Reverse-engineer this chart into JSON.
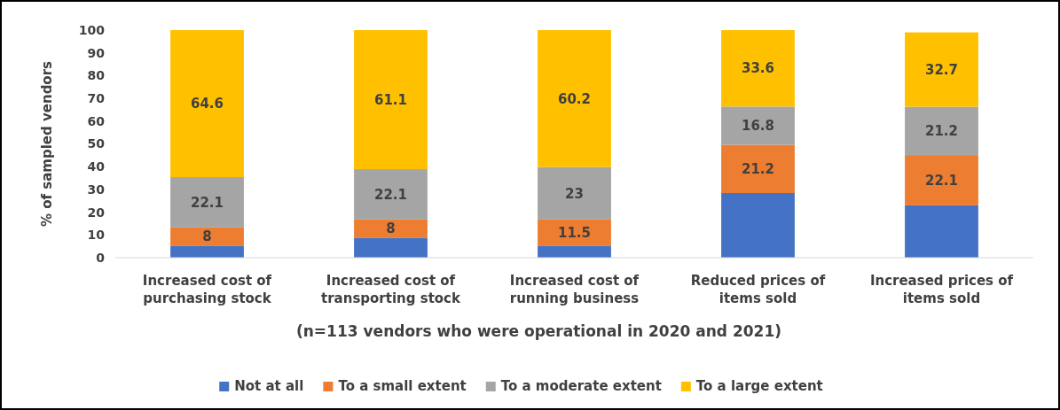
{
  "chart_data": {
    "type": "bar",
    "stacked": true,
    "xlabel": "(n=113 vendors who were operational in 2020 and 2021)",
    "ylabel": "% of sampled vendors",
    "categories": [
      "Increased cost of purchasing stock",
      "Increased cost of transporting stock",
      "Increased cost of running business",
      "Reduced prices of items sold",
      "Increased prices of items sold"
    ],
    "series": [
      {
        "name": "Not at all",
        "color": "#4472c4",
        "values": [
          5.3,
          8.8,
          5.3,
          28.4,
          23.0
        ],
        "value_labels": [
          null,
          null,
          null,
          null,
          null
        ]
      },
      {
        "name": "To a small extent",
        "color": "#ed7d31",
        "values": [
          8,
          8,
          11.5,
          21.2,
          22.1
        ],
        "value_labels": [
          "8",
          "8",
          "11.5",
          "21.2",
          "22.1"
        ]
      },
      {
        "name": "To a moderate extent",
        "color": "#a5a5a5",
        "values": [
          22.1,
          22.1,
          23,
          16.8,
          21.2
        ],
        "value_labels": [
          "22.1",
          "22.1",
          "23",
          "16.8",
          "21.2"
        ]
      },
      {
        "name": "To a large extent",
        "color": "#ffc000",
        "values": [
          64.6,
          61.1,
          60.2,
          33.6,
          32.7
        ],
        "value_labels": [
          "64.6",
          "61.1",
          "60.2",
          "33.6",
          "32.7"
        ]
      }
    ],
    "ylim": [
      0,
      100
    ],
    "yticks": [
      0,
      10,
      20,
      30,
      40,
      50,
      60,
      70,
      80,
      90,
      100
    ],
    "grid": false,
    "legend": "bottom"
  }
}
